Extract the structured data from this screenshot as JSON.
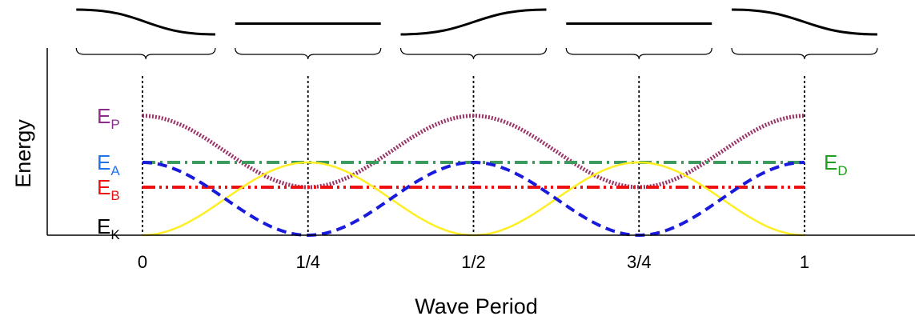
{
  "chart_data": {
    "type": "line",
    "xlabel": "Wave Period",
    "ylabel": "Energy",
    "xlim": [
      -0.1375,
      1.15
    ],
    "ylim": [
      0,
      1.1
    ],
    "x_ticks": [
      {
        "value": 0,
        "label": "0"
      },
      {
        "value": 0.25,
        "label": "1/4"
      },
      {
        "value": 0.5,
        "label": "1/2"
      },
      {
        "value": 0.75,
        "label": "3/4"
      },
      {
        "value": 1,
        "label": "1"
      }
    ],
    "grid": false,
    "series": [
      {
        "key": "EP",
        "name": "E",
        "sub": "P",
        "color": "#993366",
        "style": "dotted",
        "function": "EA + EB - EA*cos^2(2*pi*x) + EA*sin^2(2*pi*x) approximated",
        "x": [
          0,
          0.25,
          0.5,
          0.75,
          1
        ],
        "values": [
          0.82,
          0.33,
          0.82,
          0.33,
          0.82
        ]
      },
      {
        "key": "EA",
        "name": "E",
        "sub": "A",
        "color": "#3c9a5c",
        "style": "dashdot",
        "x": [
          0,
          1
        ],
        "values": [
          0.5,
          0.5
        ]
      },
      {
        "key": "EB",
        "name": "E",
        "sub": "B",
        "color": "#ee1111",
        "style": "dashdotdot",
        "x": [
          0,
          1
        ],
        "values": [
          0.33,
          0.33
        ]
      },
      {
        "key": "EK",
        "name": "E",
        "sub": "K",
        "color": "#ffee22",
        "style": "solid",
        "x": [
          0,
          0.25,
          0.5,
          0.75,
          1
        ],
        "values": [
          0,
          0.5,
          0,
          0.5,
          0
        ]
      },
      {
        "key": "EPot",
        "name": "",
        "color": "#1a1adc",
        "style": "dashed",
        "x": [
          0,
          0.25,
          0.5,
          0.75,
          1
        ],
        "values": [
          0.5,
          0,
          0.5,
          0,
          0.5
        ]
      }
    ],
    "left_labels": [
      {
        "key": "EP",
        "text": "E",
        "sub": "P",
        "color": "#8c2c8c",
        "y": 0.82
      },
      {
        "key": "EA",
        "text": "E",
        "sub": "A",
        "color": "#1f72e8",
        "y": 0.5
      },
      {
        "key": "EB",
        "text": "E",
        "sub": "B",
        "color": "#ee1111",
        "y": 0.33
      },
      {
        "key": "EK",
        "text": "E",
        "sub": "K",
        "color": "#000000",
        "y": 0.06
      }
    ],
    "right_label": {
      "text": "E",
      "sub": "D",
      "color": "#1f9e1f",
      "y": 0.5
    },
    "vertical_markers": [
      0,
      0.25,
      0.5,
      0.75,
      1
    ],
    "top_profiles": [
      {
        "x_start": -0.1,
        "x_end": 0.11,
        "shape": "fall"
      },
      {
        "x_start": 0.14,
        "x_end": 0.36,
        "shape": "flat"
      },
      {
        "x_start": 0.39,
        "x_end": 0.61,
        "shape": "rise"
      },
      {
        "x_start": 0.64,
        "x_end": 0.86,
        "shape": "flat"
      },
      {
        "x_start": 0.89,
        "x_end": 1.11,
        "shape": "fall"
      }
    ]
  }
}
